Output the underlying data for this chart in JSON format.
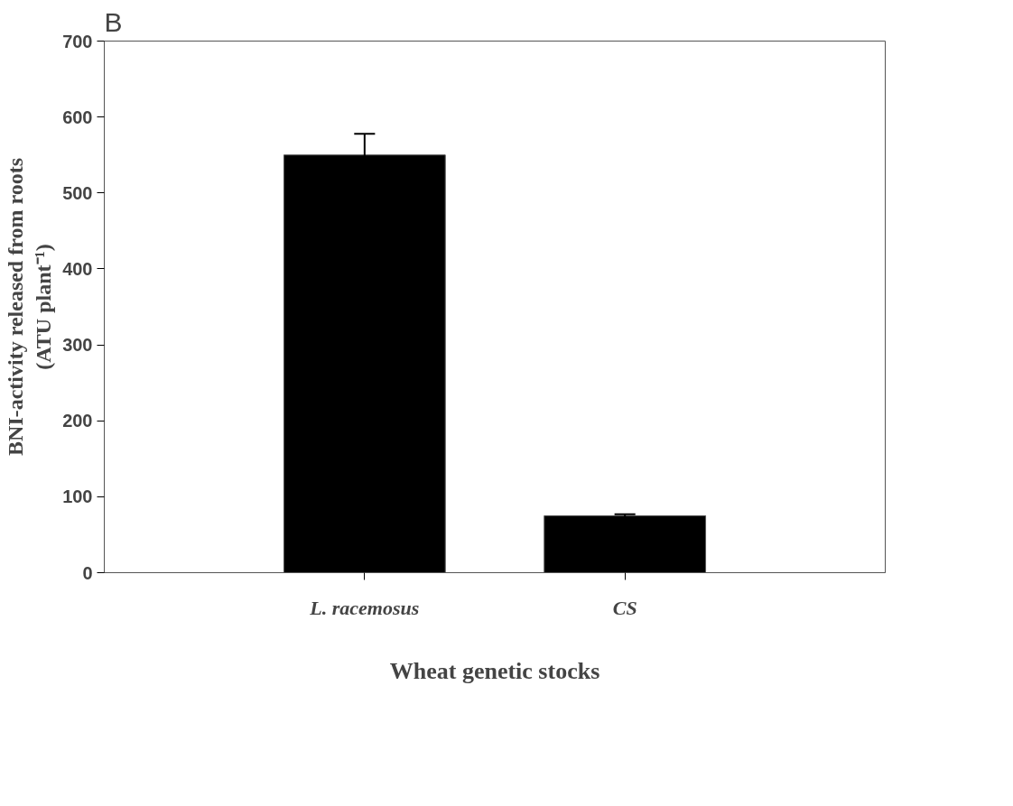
{
  "chart_data": {
    "type": "bar",
    "title": "B",
    "xlabel": "Wheat genetic stocks",
    "ylabel": "BNI-activity released from roots\n(ATU plant⁻¹)",
    "categories": [
      "L. racemosus",
      "CS"
    ],
    "values": [
      550,
      75
    ],
    "errors": [
      28,
      2
    ],
    "color": "#000000",
    "ylim": [
      0,
      700
    ],
    "yticks": [
      0,
      100,
      200,
      300,
      400,
      500,
      600,
      700
    ],
    "grid": false
  }
}
